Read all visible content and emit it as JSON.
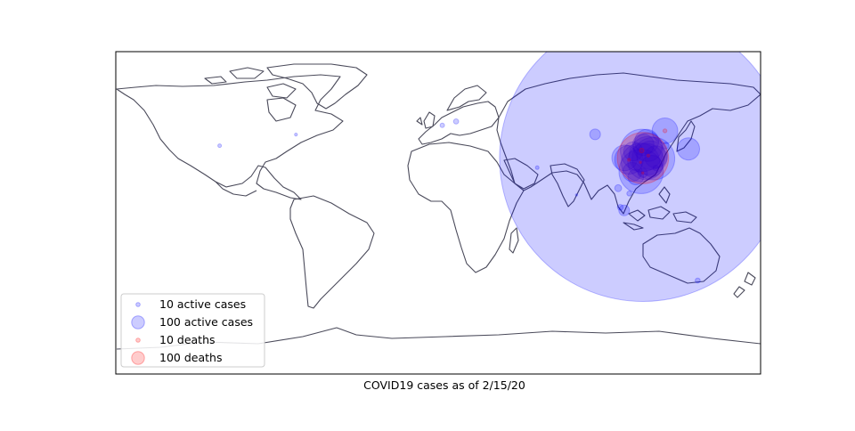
{
  "title": "COVID19 cases as of 2/15/20",
  "colors": {
    "active": "#0000ff",
    "deaths": "#ff0000",
    "coast": "#4a4a5a",
    "frame": "#000000"
  },
  "legend": {
    "placement": "lower-left",
    "items": [
      {
        "label": "10 active cases",
        "kind": "active",
        "count": 10
      },
      {
        "label": "100 active cases",
        "kind": "active",
        "count": 100
      },
      {
        "label": "10 deaths",
        "kind": "deaths",
        "count": 10
      },
      {
        "label": "100 deaths",
        "kind": "deaths",
        "count": 100
      }
    ]
  },
  "chart_data": {
    "type": "scatter",
    "projection": "equirectangular",
    "lon_range": [
      -180,
      180
    ],
    "lat_range": [
      -90,
      90
    ],
    "series": [
      {
        "name": "active cases",
        "points": [
          {
            "lon": 114.3,
            "lat": 30.6,
            "count": 50000
          },
          {
            "lon": 113.6,
            "lat": 34.8,
            "count": 1100
          },
          {
            "lon": 113.3,
            "lat": 23.1,
            "count": 1200
          },
          {
            "lon": 120.2,
            "lat": 30.3,
            "count": 1100
          },
          {
            "lon": 112.9,
            "lat": 28.2,
            "count": 900
          },
          {
            "lon": 115.9,
            "lat": 28.7,
            "count": 800
          },
          {
            "lon": 117.3,
            "lat": 31.9,
            "count": 900
          },
          {
            "lon": 106.5,
            "lat": 29.6,
            "count": 500
          },
          {
            "lon": 118.8,
            "lat": 32.1,
            "count": 500
          },
          {
            "lon": 117.0,
            "lat": 36.7,
            "count": 500
          },
          {
            "lon": 104.1,
            "lat": 30.7,
            "count": 400
          },
          {
            "lon": 116.4,
            "lat": 39.9,
            "count": 350
          },
          {
            "lon": 121.5,
            "lat": 31.2,
            "count": 300
          },
          {
            "lon": 119.3,
            "lat": 26.1,
            "count": 280
          },
          {
            "lon": 108.9,
            "lat": 34.3,
            "count": 220
          },
          {
            "lon": 108.3,
            "lat": 22.8,
            "count": 220
          },
          {
            "lon": 114.5,
            "lat": 38.0,
            "count": 280
          },
          {
            "lon": 126.6,
            "lat": 45.8,
            "count": 400
          },
          {
            "lon": 110.3,
            "lat": 20.0,
            "count": 150
          },
          {
            "lon": 139.7,
            "lat": 35.7,
            "count": 300
          },
          {
            "lon": 103.8,
            "lat": 1.35,
            "count": 70
          },
          {
            "lon": 100.5,
            "lat": 13.75,
            "count": 30
          },
          {
            "lon": 114.2,
            "lat": 22.3,
            "count": 55
          },
          {
            "lon": 127.0,
            "lat": 37.5,
            "count": 25
          },
          {
            "lon": 121.5,
            "lat": 25.0,
            "count": 18
          },
          {
            "lon": 87.6,
            "lat": 43.8,
            "count": 70
          },
          {
            "lon": 101.7,
            "lat": 3.1,
            "count": 20
          },
          {
            "lon": 106.7,
            "lat": 10.8,
            "count": 15
          },
          {
            "lon": 144.9,
            "lat": -37.8,
            "count": 15
          },
          {
            "lon": 10.0,
            "lat": 51.0,
            "count": 16
          },
          {
            "lon": 2.3,
            "lat": 48.9,
            "count": 12
          },
          {
            "lon": 55.3,
            "lat": 25.2,
            "count": 8
          },
          {
            "lon": -122.0,
            "lat": 37.5,
            "count": 8
          },
          {
            "lon": -79.4,
            "lat": 43.7,
            "count": 5
          },
          {
            "lon": 77.2,
            "lat": 10.0,
            "count": 3
          }
        ]
      },
      {
        "name": "deaths",
        "points": [
          {
            "lon": 114.3,
            "lat": 30.6,
            "count": 1600
          },
          {
            "lon": 113.6,
            "lat": 34.8,
            "count": 13
          },
          {
            "lon": 126.6,
            "lat": 45.8,
            "count": 9
          },
          {
            "lon": 117.3,
            "lat": 31.9,
            "count": 5
          },
          {
            "lon": 106.5,
            "lat": 29.6,
            "count": 5
          },
          {
            "lon": 112.9,
            "lat": 28.2,
            "count": 2
          },
          {
            "lon": 114.2,
            "lat": 22.3,
            "count": 1
          }
        ]
      }
    ]
  }
}
